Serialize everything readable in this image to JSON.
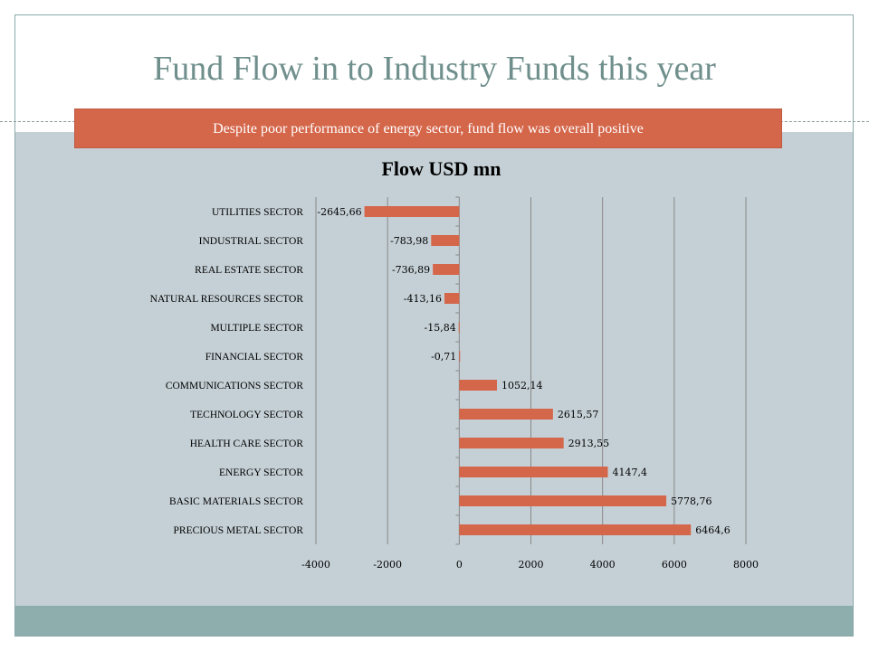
{
  "slide": {
    "title": "Fund Flow in to Industry Funds this year",
    "banner": "Despite poor performance of energy sector, fund flow was overall positive"
  },
  "colors": {
    "bar": "#d4664a",
    "background": "#c5d0d6",
    "title": "#6f8f8c",
    "band": "#8eadad"
  },
  "chart_data": {
    "type": "bar",
    "orientation": "horizontal",
    "title": "Flow USD mn",
    "categories": [
      "UTILITIES SECTOR",
      "INDUSTRIAL SECTOR",
      "REAL ESTATE SECTOR",
      "NATURAL RESOURCES SECTOR",
      "MULTIPLE SECTOR",
      "FINANCIAL SECTOR",
      "COMMUNICATIONS SECTOR",
      "TECHNOLOGY SECTOR",
      "HEALTH CARE SECTOR",
      "ENERGY SECTOR",
      "BASIC MATERIALS SECTOR",
      "PRECIOUS METAL SECTOR"
    ],
    "values": [
      -2645.66,
      -783.98,
      -736.89,
      -413.16,
      -15.84,
      -0.71,
      1052.14,
      2615.57,
      2913.55,
      4147.4,
      5778.76,
      6464.6
    ],
    "data_labels": [
      "-2645,66",
      "-783,98",
      "-736,89",
      "-413,16",
      "-15,84",
      "-0,71",
      "1052,14",
      "2615,57",
      "2913,55",
      "4147,4",
      "5778,76",
      "6464,6"
    ],
    "xlim": [
      -4000,
      8000
    ],
    "xticks": [
      -4000,
      -2000,
      0,
      2000,
      4000,
      6000,
      8000
    ],
    "grid": true,
    "legend": "none"
  }
}
